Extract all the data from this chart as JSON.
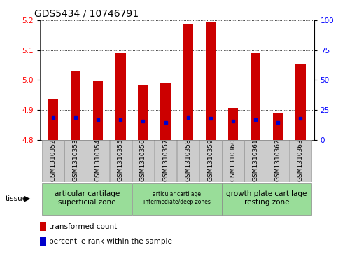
{
  "title": "GDS5434 / 10746791",
  "samples": [
    "GSM1310352",
    "GSM1310353",
    "GSM1310354",
    "GSM1310355",
    "GSM1310356",
    "GSM1310357",
    "GSM1310358",
    "GSM1310359",
    "GSM1310360",
    "GSM1310361",
    "GSM1310362",
    "GSM1310363"
  ],
  "bar_tops": [
    4.935,
    5.03,
    4.995,
    5.09,
    4.985,
    4.99,
    5.185,
    5.195,
    4.905,
    5.09,
    4.89,
    5.055
  ],
  "bar_bottoms": [
    4.8,
    4.8,
    4.8,
    4.8,
    4.8,
    4.8,
    4.8,
    4.8,
    4.8,
    4.8,
    4.8,
    4.8
  ],
  "blue_marker_y": [
    4.875,
    4.875,
    4.868,
    4.868,
    4.862,
    4.857,
    4.875,
    4.873,
    4.862,
    4.868,
    4.857,
    4.873
  ],
  "ylim_left": [
    4.8,
    5.2
  ],
  "ylim_right": [
    0,
    100
  ],
  "yticks_left": [
    4.8,
    4.9,
    5.0,
    5.1,
    5.2
  ],
  "yticks_right": [
    0,
    25,
    50,
    75,
    100
  ],
  "bar_color": "#cc0000",
  "blue_color": "#0000cc",
  "tissue_groups": [
    {
      "label": "articular cartilage\nsuperficial zone",
      "start": 0,
      "end": 3
    },
    {
      "label": "articular cartilage\nintermediate/deep zones",
      "start": 4,
      "end": 7
    },
    {
      "label": "growth plate cartilage\nresting zone",
      "start": 8,
      "end": 11
    }
  ],
  "tissue_color": "#99dd99",
  "sample_cell_color": "#cccccc",
  "tissue_label": "tissue",
  "legend_red": "transformed count",
  "legend_blue": "percentile rank within the sample",
  "bar_width": 0.45,
  "title_fontsize": 10,
  "label_fontsize": 7,
  "tick_fontsize": 7.5,
  "sample_fontsize": 6.5
}
